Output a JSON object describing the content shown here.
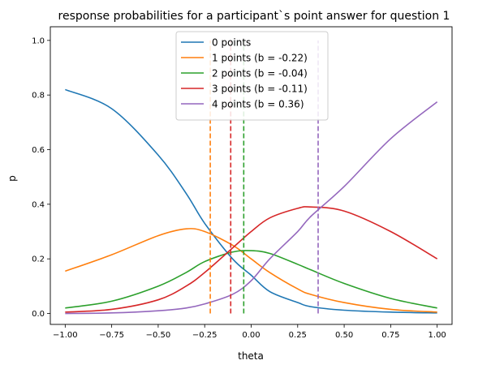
{
  "chart_data": {
    "type": "line",
    "title": "response probabilities for a participant`s point answer for question 1",
    "xlabel": "theta",
    "ylabel": "p",
    "xlim": [
      -1.08,
      1.08
    ],
    "ylim": [
      -0.04,
      1.05
    ],
    "xticks": [
      -1.0,
      -0.75,
      -0.5,
      -0.25,
      0.0,
      0.25,
      0.5,
      0.75,
      1.0
    ],
    "xtick_labels": [
      "−1.00",
      "−0.75",
      "−0.50",
      "−0.25",
      "0.00",
      "0.25",
      "0.50",
      "0.75",
      "1.00"
    ],
    "yticks": [
      0.0,
      0.2,
      0.4,
      0.6,
      0.8,
      1.0
    ],
    "ytick_labels": [
      "0.0",
      "0.2",
      "0.4",
      "0.6",
      "0.8",
      "1.0"
    ],
    "grid": false,
    "legend_position": "top-center",
    "x": [
      -1.0,
      -0.75,
      -0.5,
      -0.35,
      -0.25,
      -0.1,
      0.0,
      0.1,
      0.25,
      0.32,
      0.5,
      0.75,
      1.0
    ],
    "series": [
      {
        "name": "0 points",
        "color": "#1f77b4",
        "values": [
          0.82,
          0.75,
          0.58,
          0.44,
          0.33,
          0.2,
          0.14,
          0.08,
          0.04,
          0.025,
          0.012,
          0.005,
          0.002
        ]
      },
      {
        "name": "1 points (b = -0.22)",
        "color": "#ff7f0e",
        "values": [
          0.155,
          0.215,
          0.285,
          0.31,
          0.3,
          0.25,
          0.2,
          0.15,
          0.09,
          0.07,
          0.04,
          0.015,
          0.005
        ]
      },
      {
        "name": "2 points (b = -0.04)",
        "color": "#2ca02c",
        "values": [
          0.02,
          0.045,
          0.1,
          0.15,
          0.19,
          0.225,
          0.23,
          0.22,
          0.18,
          0.16,
          0.11,
          0.055,
          0.02
        ]
      },
      {
        "name": "3 points (b = -0.11)",
        "color": "#d62728",
        "values": [
          0.005,
          0.015,
          0.05,
          0.1,
          0.15,
          0.24,
          0.3,
          0.35,
          0.385,
          0.39,
          0.375,
          0.3,
          0.2
        ]
      },
      {
        "name": "4 points (b = 0.36)",
        "color": "#9467bd",
        "values": [
          0.0,
          0.002,
          0.01,
          0.02,
          0.035,
          0.07,
          0.12,
          0.2,
          0.3,
          0.355,
          0.465,
          0.64,
          0.775
        ]
      }
    ],
    "vlines": [
      {
        "x": -0.22,
        "color": "#ff7f0e",
        "ymin": 0.0,
        "ymax": 1.0
      },
      {
        "x": -0.11,
        "color": "#d62728",
        "ymin": 0.0,
        "ymax": 1.0
      },
      {
        "x": -0.04,
        "color": "#2ca02c",
        "ymin": 0.0,
        "ymax": 1.0
      },
      {
        "x": 0.36,
        "color": "#9467bd",
        "ymin": 0.0,
        "ymax": 1.0
      }
    ]
  }
}
